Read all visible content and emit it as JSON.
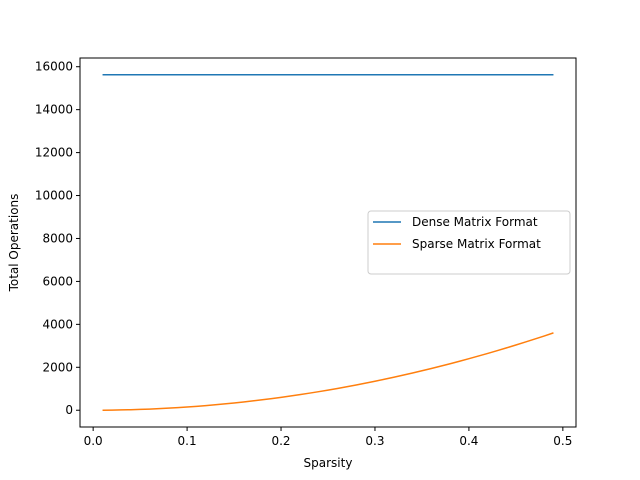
{
  "chart_data": {
    "type": "line",
    "xlabel": "Sparsity",
    "ylabel": "Total Operations",
    "x": [
      0.01,
      0.02,
      0.03,
      0.04,
      0.05,
      0.06,
      0.07,
      0.08,
      0.09,
      0.1,
      0.11,
      0.12,
      0.13,
      0.14,
      0.15,
      0.16,
      0.17,
      0.18,
      0.19,
      0.2,
      0.21,
      0.22,
      0.23,
      0.24,
      0.25,
      0.26,
      0.27,
      0.28,
      0.29,
      0.3,
      0.31,
      0.32,
      0.33,
      0.34,
      0.35,
      0.36,
      0.37,
      0.38,
      0.39,
      0.4,
      0.41,
      0.42,
      0.43,
      0.44,
      0.45,
      0.46,
      0.47,
      0.48,
      0.49
    ],
    "series": [
      {
        "name": "Dense Matrix Format",
        "color": "#1f77b4",
        "values": [
          15625,
          15625,
          15625,
          15625,
          15625,
          15625,
          15625,
          15625,
          15625,
          15625,
          15625,
          15625,
          15625,
          15625,
          15625,
          15625,
          15625,
          15625,
          15625,
          15625,
          15625,
          15625,
          15625,
          15625,
          15625,
          15625,
          15625,
          15625,
          15625,
          15625,
          15625,
          15625,
          15625,
          15625,
          15625,
          15625,
          15625,
          15625,
          15625,
          15625,
          15625,
          15625,
          15625,
          15625,
          15625,
          15625,
          15625,
          15625,
          15625
        ]
      },
      {
        "name": "Sparse Matrix Format",
        "color": "#ff7f0e",
        "values": [
          2,
          6,
          14,
          24,
          38,
          54,
          74,
          96,
          122,
          150,
          182,
          216,
          254,
          294,
          338,
          384,
          434,
          486,
          542,
          600,
          662,
          726,
          794,
          864,
          938,
          1014,
          1094,
          1176,
          1262,
          1350,
          1442,
          1536,
          1634,
          1734,
          1838,
          1944,
          2054,
          2166,
          2282,
          2400,
          2522,
          2646,
          2774,
          2904,
          3038,
          3174,
          3314,
          3456,
          3602
        ]
      }
    ],
    "xlim": [
      -0.014,
      0.514
    ],
    "xticks": [
      {
        "value": 0,
        "label": "0.0"
      },
      0.1,
      0.2,
      0.3,
      0.4,
      0.5
    ],
    "ylim": [
      -781,
      16406
    ],
    "yticks": [
      0,
      2000,
      4000,
      6000,
      8000,
      10000,
      12000,
      14000,
      16000
    ],
    "legend": "center right"
  }
}
